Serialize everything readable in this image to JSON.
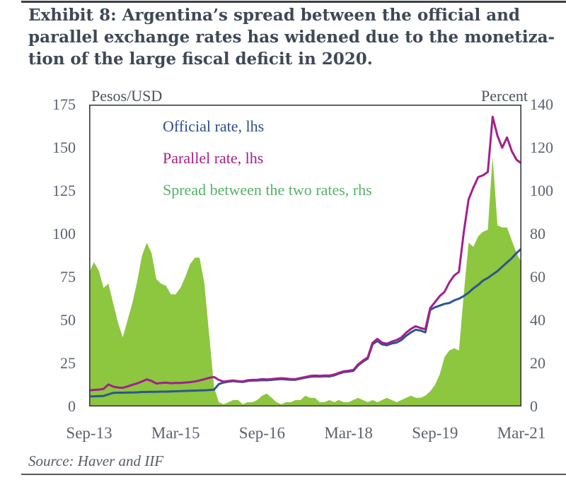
{
  "header": {
    "title_lines": [
      "Exhibit 8: Argentina’s spread between the official and",
      "parallel exchange rates has widened due to the monetiza-",
      "tion of the large fiscal deficit in 2020."
    ]
  },
  "chart": {
    "left_axis_title": "Pesos/USD",
    "right_axis_title": "Percent",
    "left_ticks": [
      175,
      150,
      125,
      100,
      75,
      50,
      25,
      0
    ],
    "right_ticks": [
      140,
      120,
      100,
      80,
      60,
      40,
      20,
      0
    ],
    "x_ticks": [
      "Sep-13",
      "Mar-15",
      "Sep-16",
      "Mar-18",
      "Sep-19",
      "Mar-21"
    ],
    "legend": [
      {
        "label": "Official rate, lhs",
        "color": "#2c4f8f"
      },
      {
        "label": "Parallel rate, lhs",
        "color": "#a2208e"
      },
      {
        "label": "Spread between the two rates, rhs",
        "color": "#56b267"
      }
    ]
  },
  "footer": {
    "source": "Source: Haver and IIF"
  },
  "chart_data": {
    "type": "combo",
    "title": "Argentina official vs parallel exchange rate and spread",
    "x_unit": "months since Sep-2013, monthly",
    "x_range": [
      0,
      90
    ],
    "x_tick_positions": [
      0,
      18,
      36,
      54,
      72,
      90
    ],
    "x_tick_labels": [
      "Sep-13",
      "Mar-15",
      "Sep-16",
      "Mar-18",
      "Sep-19",
      "Mar-21"
    ],
    "left_axis": {
      "title": "Pesos/USD",
      "range": [
        0,
        175
      ]
    },
    "right_axis": {
      "title": "Percent",
      "range": [
        0,
        140
      ]
    },
    "grid": false,
    "legend_position": "top-left-inside",
    "plot_border_color": "#3a3b3e",
    "series": [
      {
        "name": "Official rate, lhs",
        "type": "line",
        "axis": "lhs",
        "color": "#2c568f",
        "values": [
          5.8,
          5.9,
          6.0,
          6.1,
          7.0,
          7.9,
          8.0,
          8.0,
          8.1,
          8.1,
          8.2,
          8.4,
          8.4,
          8.5,
          8.5,
          8.6,
          8.6,
          8.7,
          8.8,
          8.9,
          9.0,
          9.1,
          9.2,
          9.3,
          9.4,
          9.5,
          9.7,
          13.0,
          13.9,
          14.4,
          14.7,
          14.4,
          14.2,
          14.8,
          15.0,
          15.1,
          15.3,
          15.2,
          15.4,
          15.7,
          15.9,
          15.7,
          15.5,
          15.5,
          16.1,
          16.7,
          17.2,
          17.4,
          17.3,
          17.5,
          17.4,
          18.0,
          19.0,
          19.9,
          20.2,
          20.6,
          23.8,
          26.0,
          27.8,
          36.0,
          38.0,
          36.0,
          35.5,
          36.5,
          37.0,
          38.5,
          41.0,
          43.0,
          44.5,
          44.0,
          43.0,
          56.0,
          57.5,
          58.5,
          59.5,
          60.0,
          61.5,
          62.5,
          64.0,
          66.0,
          68.5,
          70.5,
          73.0,
          74.5,
          76.5,
          78.5,
          81.0,
          83.5,
          86.0,
          89.0,
          91.5
        ]
      },
      {
        "name": "Parallel rate, lhs",
        "type": "line",
        "axis": "lhs",
        "color": "#a2208e",
        "values": [
          9.4,
          9.6,
          9.8,
          10.2,
          12.8,
          11.5,
          11.0,
          10.8,
          11.6,
          12.6,
          13.4,
          14.5,
          15.7,
          14.8,
          13.3,
          13.6,
          13.8,
          13.5,
          13.7,
          13.6,
          13.9,
          14.1,
          14.5,
          15.1,
          15.8,
          16.6,
          17.1,
          15.4,
          14.4,
          14.8,
          15.1,
          14.7,
          14.5,
          15.2,
          15.4,
          15.5,
          15.8,
          15.7,
          15.9,
          16.2,
          16.4,
          16.2,
          15.9,
          15.9,
          16.5,
          17.1,
          17.7,
          17.9,
          17.8,
          18.0,
          17.9,
          18.5,
          19.5,
          20.4,
          20.7,
          21.2,
          24.4,
          26.6,
          28.5,
          36.9,
          39.2,
          37.0,
          36.4,
          37.6,
          38.5,
          40.0,
          42.8,
          45.0,
          46.5,
          45.5,
          44.8,
          57.0,
          60.5,
          64.0,
          66.5,
          72.0,
          76.0,
          78.0,
          101.0,
          120.0,
          127.0,
          133.0,
          134.0,
          136.0,
          168.0,
          157.0,
          150.0,
          156.0,
          148.0,
          143.0,
          141.0
        ]
      },
      {
        "name": "Spread between the two rates, rhs",
        "type": "area",
        "axis": "rhs",
        "color": "#8dc63f",
        "values": [
          62,
          67,
          63,
          55,
          57,
          48,
          39,
          32,
          40,
          48,
          58,
          70,
          76,
          71,
          59,
          57,
          56,
          52,
          52,
          55,
          60,
          66,
          69,
          69,
          57,
          33,
          9,
          2,
          1,
          2,
          3,
          3,
          1,
          2,
          2,
          3,
          5,
          6,
          4,
          2,
          1,
          2,
          2,
          3,
          3,
          5,
          4,
          4,
          2,
          2,
          3,
          2,
          3,
          2,
          2,
          3,
          4,
          3,
          2,
          3,
          2,
          3,
          4,
          3,
          2,
          3,
          4,
          5,
          4,
          4,
          5,
          7,
          10,
          15,
          23,
          26,
          27,
          26,
          52,
          76,
          74,
          79,
          81,
          82,
          116,
          84,
          83,
          83,
          77,
          71,
          67
        ]
      }
    ]
  }
}
